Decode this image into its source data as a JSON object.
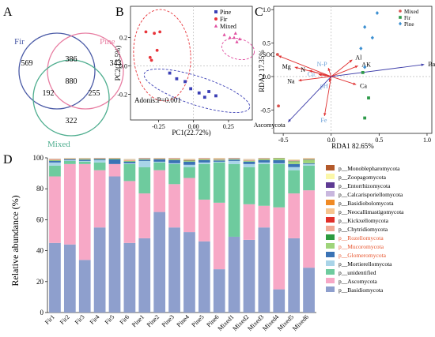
{
  "panel_labels": [
    "A",
    "B",
    "C",
    "D"
  ],
  "venn": {
    "sets": [
      {
        "name": "Fir",
        "color": "#4a5aa6"
      },
      {
        "name": "Pine",
        "color": "#e87ea2"
      },
      {
        "name": "Mixed",
        "color": "#4fae8f"
      }
    ],
    "counts": {
      "fir_only": "569",
      "pine_only": "343",
      "mixed_only": "322",
      "fir_pine": "386",
      "fir_mixed": "192",
      "pine_mixed": "255",
      "all": "880"
    }
  },
  "chart_data": [
    {
      "type": "scatter",
      "panel": "B",
      "xlabel": "PC1(22.72%)",
      "ylabel": "PC2(13.5%)",
      "xlim": [
        -0.45,
        0.42
      ],
      "ylim": [
        -0.38,
        0.42
      ],
      "xticks": [
        "-0.25",
        "0.00",
        "0.25"
      ],
      "xtick_values": [
        -0.25,
        0,
        0.25
      ],
      "yticks": [
        "-0.2",
        "0.0",
        "0.2"
      ],
      "ytick_values": [
        -0.2,
        0,
        0.2
      ],
      "legend_position": "top-right",
      "annotation": "Adonis:P=0.001",
      "series": [
        {
          "name": "Pine",
          "color": "#3b3fb5",
          "marker": "square",
          "points": [
            [
              -0.12,
              -0.09
            ],
            [
              -0.06,
              -0.11
            ],
            [
              -0.02,
              -0.16
            ],
            [
              0.04,
              -0.19
            ],
            [
              0.08,
              -0.22
            ],
            [
              0.11,
              -0.18
            ],
            [
              0.16,
              -0.21
            ],
            [
              -0.17,
              -0.05
            ]
          ]
        },
        {
          "name": "Fir",
          "color": "#e8343a",
          "marker": "circle",
          "points": [
            [
              -0.34,
              0.24
            ],
            [
              -0.28,
              0.23
            ],
            [
              -0.24,
              0.24
            ],
            [
              -0.3,
              0.04
            ],
            [
              -0.31,
              0.06
            ],
            [
              -0.26,
              0.11
            ]
          ]
        },
        {
          "name": "Mixed",
          "color": "#e04fa0",
          "marker": "triangle",
          "points": [
            [
              0.22,
              0.22
            ],
            [
              0.26,
              0.2
            ],
            [
              0.29,
              0.2
            ],
            [
              0.31,
              0.17
            ],
            [
              0.3,
              0.23
            ],
            [
              0.33,
              0.19
            ]
          ]
        }
      ]
    },
    {
      "type": "scatter",
      "panel": "C",
      "xlabel": "RDA1 82.65%",
      "ylabel": "RDA2 17.35%",
      "xlim": [
        -0.6,
        1.05
      ],
      "ylim": [
        -0.85,
        1.05
      ],
      "xticks": [
        "-0.5",
        "0.0",
        "0.5",
        "1.0"
      ],
      "xtick_values": [
        -0.5,
        0,
        0.5,
        1.0
      ],
      "yticks": [
        "-0.5",
        "0.0",
        "0.5",
        "1.0"
      ],
      "ytick_values": [
        -0.5,
        0,
        0.5,
        1.0
      ],
      "legend_position": "top-right",
      "series": [
        {
          "name": "Mixed",
          "color": "#d9534f",
          "marker": "circle",
          "points": [
            [
              -0.56,
              0.33
            ],
            [
              -0.55,
              -0.44
            ]
          ]
        },
        {
          "name": "Fir",
          "color": "#2e9a4a",
          "marker": "square",
          "points": [
            [
              0.33,
              0.06
            ],
            [
              0.39,
              -0.32
            ],
            [
              0.35,
              -0.62
            ]
          ]
        },
        {
          "name": "Pine",
          "color": "#3b8fd1",
          "marker": "diamond",
          "points": [
            [
              0.48,
              0.95
            ],
            [
              0.43,
              0.58
            ],
            [
              0.35,
              0.74
            ],
            [
              0.31,
              0.42
            ],
            [
              0.35,
              0.14
            ]
          ]
        }
      ],
      "vectors": [
        {
          "label": "SOC",
          "x": -0.55,
          "y": 0.31,
          "color": "#e03030",
          "label_color": "#000000"
        },
        {
          "label": "Mg",
          "x": -0.38,
          "y": 0.14,
          "color": "#e03030",
          "label_color": "#000000"
        },
        {
          "label": "N",
          "x": -0.23,
          "y": 0.09,
          "color": "#e03030",
          "label_color": "#000000"
        },
        {
          "label": "Na",
          "x": -0.34,
          "y": -0.06,
          "color": "#e03030",
          "label_color": "#000000"
        },
        {
          "label": "Cu",
          "x": -0.13,
          "y": 0.03,
          "color": "#e03030",
          "label_color": "#6aa0d8"
        },
        {
          "label": "N-P",
          "x": -0.03,
          "y": 0.13,
          "color": "#e03030",
          "label_color": "#6aa0d8"
        },
        {
          "label": "pH",
          "x": -0.02,
          "y": -0.08,
          "color": "#e03030",
          "label_color": "#6aa0d8"
        },
        {
          "label": "Fe",
          "x": -0.07,
          "y": -0.59,
          "color": "#e03030",
          "label_color": "#6aa0d8"
        },
        {
          "label": "Al",
          "x": 0.22,
          "y": 0.25,
          "color": "#e03030",
          "label_color": "#000000"
        },
        {
          "label": "AK",
          "x": 0.28,
          "y": 0.16,
          "color": "#e03030",
          "label_color": "#000000"
        },
        {
          "label": "Ca",
          "x": 0.26,
          "y": -0.12,
          "color": "#e03030",
          "label_color": "#000000"
        },
        {
          "label": "Basidiomycota",
          "x": 0.97,
          "y": 0.18,
          "color": "#3a3aa8",
          "label_color": "#000000"
        },
        {
          "label": "Ascomycota",
          "x": -0.45,
          "y": -0.68,
          "color": "#3a3aa8",
          "label_color": "#000000"
        }
      ]
    },
    {
      "type": "bar",
      "panel": "D",
      "stacked": true,
      "ylabel": "Relative abundance (%)",
      "ylim": [
        0,
        100
      ],
      "yticks": [
        "0",
        "20",
        "40",
        "60",
        "80",
        "100"
      ],
      "categories": [
        "Fir1",
        "Fir2",
        "Fir3",
        "Fir4",
        "Fir5",
        "Fir6",
        "Pine1",
        "Pine2",
        "Pine3",
        "Pine4",
        "Pine5",
        "Pine6",
        "Mixed1",
        "Mixed2",
        "Mixed3",
        "Mixed4",
        "Mixed5",
        "Mixed6"
      ],
      "legend_position": "right",
      "series": [
        {
          "name": "p__Basidiomycota",
          "color": "#8e9fcd",
          "values": [
            45,
            44,
            34,
            55,
            88,
            45,
            48,
            65,
            55,
            52,
            46,
            28,
            49,
            47,
            55,
            15,
            48,
            29
          ]
        },
        {
          "name": "p__Ascomycota",
          "color": "#f7a8c6",
          "values": [
            43,
            52,
            62,
            37,
            8,
            40,
            29,
            27,
            28,
            35,
            27,
            43,
            0,
            23,
            14,
            53,
            29,
            50
          ]
        },
        {
          "name": "p__unidentified",
          "color": "#6ecb9e",
          "values": [
            7,
            2,
            1.5,
            5,
            0,
            11,
            17,
            5,
            13,
            7,
            23,
            26,
            47,
            24,
            27,
            28,
            15,
            16
          ]
        },
        {
          "name": "p__Mortierellomycota",
          "color": "#a9d4e8",
          "values": [
            2,
            0.5,
            0.5,
            1.5,
            0,
            0.5,
            4,
            0.5,
            0.5,
            1.5,
            1,
            0.5,
            2,
            2,
            1,
            0.5,
            2,
            1
          ]
        },
        {
          "name": "p__Glomeromycota",
          "color": "#3a73b5",
          "values": [
            1,
            0.5,
            0.8,
            0.5,
            3,
            1,
            0.8,
            1.5,
            2,
            2,
            1.5,
            0.8,
            0.8,
            1.5,
            1.5,
            2,
            2,
            0.5
          ]
        },
        {
          "name": "p__Mucoromycota",
          "color": "#9fd47a",
          "values": [
            0.3,
            0.1,
            0.2,
            0.2,
            0.3,
            0.3,
            0.3,
            0.2,
            0.3,
            0.4,
            0.3,
            0.3,
            0.3,
            0.4,
            0.5,
            1,
            1.5,
            2
          ]
        },
        {
          "name": "p__Rozellomycota",
          "color": "#2c9b3f",
          "values": [
            0.2,
            0.1,
            0.2,
            0.2,
            0.2,
            0.2,
            0.2,
            0.1,
            0.2,
            0.3,
            0.2,
            0.2,
            0.2,
            0.2,
            0.2,
            0.2,
            0.3,
            0.3
          ]
        },
        {
          "name": "p__Chytridiomycota",
          "color": "#f1a894",
          "values": [
            0.2,
            0.1,
            0.1,
            0.1,
            0.1,
            0.2,
            0.2,
            0.1,
            0.2,
            0.2,
            0.2,
            0.2,
            0.2,
            0.2,
            0.2,
            0.1,
            0.2,
            0.2
          ]
        },
        {
          "name": "p__Kickxellomycota",
          "color": "#e0302a",
          "values": [
            0.1,
            0.1,
            0.1,
            0.1,
            0.1,
            0.1,
            0.1,
            0.1,
            0.1,
            0.1,
            0.1,
            0.1,
            0.1,
            0.1,
            0.1,
            0.1,
            0.1,
            0.1
          ]
        },
        {
          "name": "p__Neocallimastigomycota",
          "color": "#f6c58f",
          "values": [
            0.1,
            0.1,
            0.1,
            0.1,
            0.1,
            0.1,
            0.1,
            0.1,
            0.1,
            0.1,
            0.1,
            0.1,
            0.1,
            0.1,
            0.1,
            0.1,
            0.1,
            0.1
          ]
        },
        {
          "name": "p__Basidiobolomycota",
          "color": "#f08a24",
          "values": [
            0.1,
            0.1,
            0.1,
            0.1,
            0.1,
            0.1,
            0.1,
            0.1,
            0.1,
            0.1,
            0.1,
            0.1,
            0.1,
            0.1,
            0.1,
            0.1,
            0.1,
            0.1
          ]
        },
        {
          "name": "p__Calcarisporiellomycota",
          "color": "#c9b7de",
          "values": [
            0.1,
            0.1,
            0.1,
            0.1,
            0.1,
            0.1,
            0.1,
            0.1,
            0.1,
            0.1,
            0.1,
            0.1,
            0.1,
            0.1,
            0.1,
            0.1,
            0.1,
            0.1
          ]
        },
        {
          "name": "p__Entorrhizomycota",
          "color": "#5e3a93",
          "values": [
            0.1,
            0.1,
            0.1,
            0.1,
            0.1,
            0.1,
            0.1,
            0.1,
            0.1,
            0.1,
            0.1,
            0.1,
            0.1,
            0.1,
            0.1,
            0.1,
            0.1,
            0.1
          ]
        },
        {
          "name": "p__Zoopagomycota",
          "color": "#fbf7a8",
          "values": [
            0.2,
            0.5,
            0.2,
            0.2,
            0.2,
            0.4,
            0.3,
            0.3,
            0.2,
            0.3,
            0.2,
            0.3,
            0.3,
            0.3,
            0.3,
            0.2,
            0.3,
            0.3
          ]
        },
        {
          "name": "p__Monoblepharomycota",
          "color": "#b3592a",
          "values": [
            0.1,
            0.1,
            0.1,
            0.1,
            0.1,
            0.1,
            0.1,
            0.1,
            0.1,
            0.1,
            0.1,
            0.1,
            0.1,
            0.1,
            0.1,
            0.1,
            0.1,
            0.1
          ]
        }
      ],
      "legend_label_colors": {
        "p__Rozellomycota": "#e8542c",
        "p__Mucoromycota": "#e8542c",
        "p__Glomeromycota": "#e8542c"
      }
    }
  ]
}
